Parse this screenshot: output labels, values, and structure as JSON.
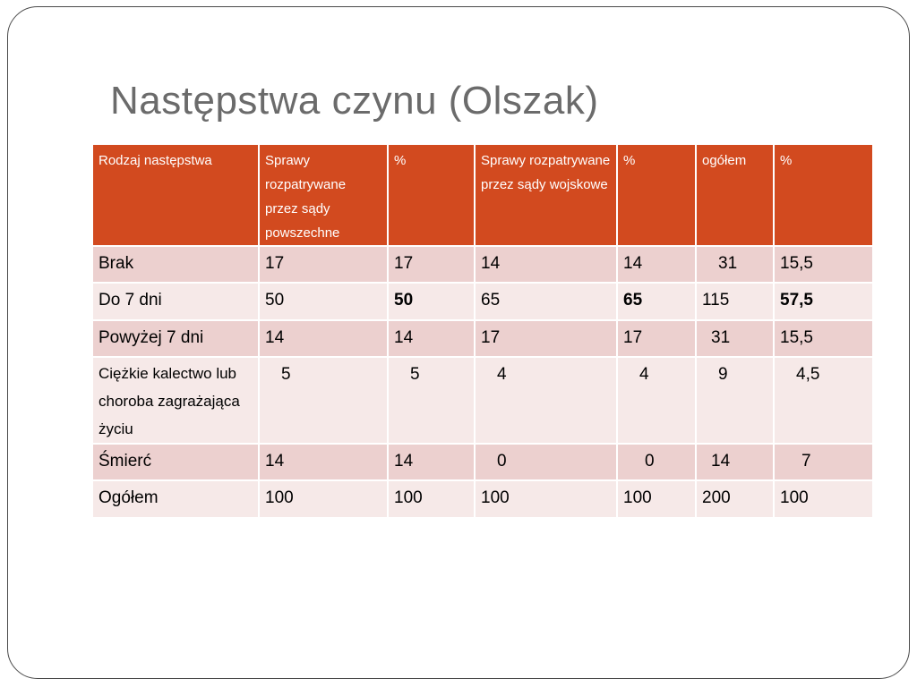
{
  "slide": {
    "title": "Następstwa czynu (Olszak)"
  },
  "colors": {
    "header_bg": "#d24a1f",
    "row_dark": "#ecd0cf",
    "row_light": "#f6e9e8",
    "title_color": "#6b6b6b"
  },
  "table": {
    "headers": [
      "Rodzaj następstwa",
      "Sprawy rozpatrywane przez  sądy powszechne",
      "%",
      "Sprawy rozpatrywane przez sądy wojskowe",
      "%",
      "ogółem",
      "%"
    ],
    "rows": [
      [
        "Brak",
        "17",
        "17",
        "14",
        "14",
        "31",
        "15,5"
      ],
      [
        "Do 7 dni",
        "50",
        "50",
        "65",
        "65",
        "115",
        "57,5"
      ],
      [
        "Powyżej 7 dni",
        "14",
        "14",
        "17",
        "17",
        "31",
        "15,5"
      ],
      [
        "Ciężkie kalectwo lub choroba zagrażająca życiu",
        "5",
        "5",
        "4",
        "4",
        "9",
        "4,5"
      ],
      [
        "Śmierć",
        "14",
        "14",
        "0",
        "0",
        "14",
        "7"
      ],
      [
        "Ogółem",
        "100",
        "100",
        "100",
        "100",
        "200",
        "100"
      ]
    ]
  }
}
